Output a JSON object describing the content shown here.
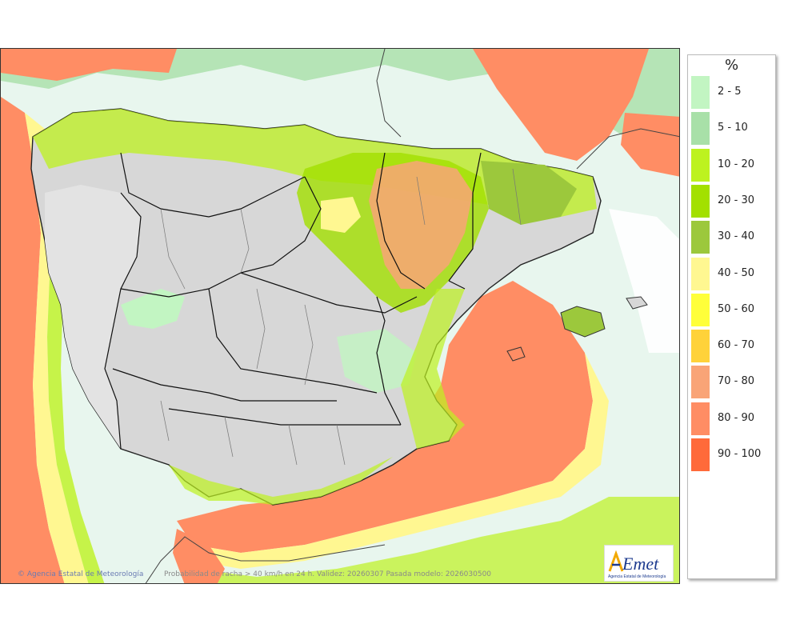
{
  "legend": {
    "unit": "%",
    "items": [
      {
        "label": "2 - 5",
        "color": "#c2f5c2"
      },
      {
        "label": "5 - 10",
        "color": "#a8e0a8"
      },
      {
        "label": "10 - 20",
        "color": "#bdf21f"
      },
      {
        "label": "20 - 30",
        "color": "#a3e000"
      },
      {
        "label": "30 - 40",
        "color": "#9cc83c"
      },
      {
        "label": "40 - 50",
        "color": "#fff791"
      },
      {
        "label": "50 - 60",
        "color": "#ffff3a"
      },
      {
        "label": "60 - 70",
        "color": "#ffd23a"
      },
      {
        "label": "70 - 80",
        "color": "#f9a477"
      },
      {
        "label": "80 - 90",
        "color": "#ff8d64"
      },
      {
        "label": "90 - 100",
        "color": "#ff6a3a"
      }
    ]
  },
  "footer": {
    "agency": "Agencia Estatal de Meteorología",
    "validity": "Probabilidad de racha > 40 km/h en 24 h. Validez: 20260307 Pasada modelo: 2026030500"
  },
  "logo": {
    "text": "AEMet",
    "subtitle": "Agencia Estatal de Meteorología"
  },
  "colors": {
    "land": "#d7d7d7",
    "sea_low": "#e6f5ec",
    "sea_high": "#ff8d64"
  }
}
